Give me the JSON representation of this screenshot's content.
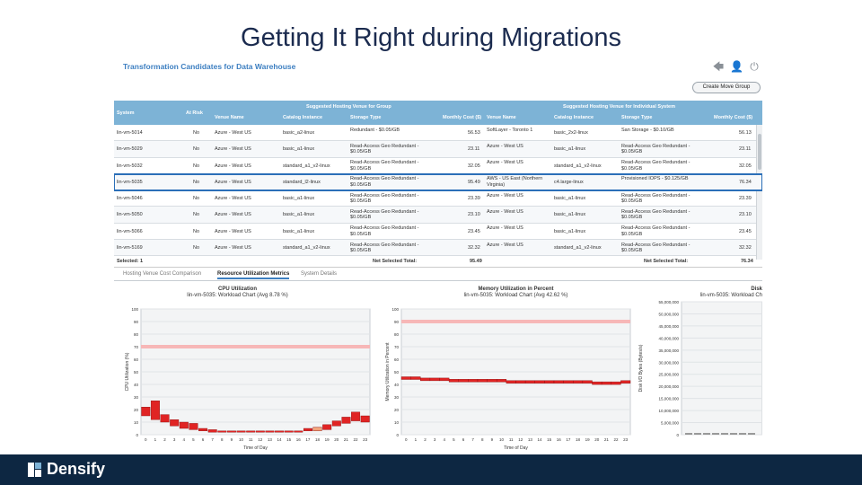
{
  "slide": {
    "title": "Getting It Right during Migrations",
    "logo_text": "Densify"
  },
  "app": {
    "title": "Transformation Candidates for Data Warehouse",
    "toolbar_icons": [
      "back-arrow-icon",
      "user-icon",
      "power-icon"
    ],
    "create_button": "Create Move Group"
  },
  "grid": {
    "group_headers": {
      "group": "Suggested Hosting Venue for Group",
      "individual": "Suggested Hosting Venue for Individual System"
    },
    "columns": [
      "System",
      "At Risk",
      "Venue Name",
      "Catalog Instance",
      "Storage Type",
      "Monthly Cost ($)",
      "Venue Name",
      "Catalog Instance",
      "Storage Type",
      "Monthly Cost ($)"
    ],
    "rows": [
      {
        "system": "lin-vm-5014",
        "risk": "No",
        "venue": "Azure - West US",
        "catalog": "basic_a2-linux",
        "storage": "Redundant - $0.05/GB",
        "cost": "56.53",
        "venue2": "SoftLayer - Toronto 1",
        "catalog2": "basic_2x2-linux",
        "storage2": "San Storage - $0.10/GB",
        "cost2": "56.13"
      },
      {
        "system": "lin-vm-5029",
        "risk": "No",
        "venue": "Azure - West US",
        "catalog": "basic_a1-linux",
        "storage": "Read-Access Geo Redundant - $0.05/GB",
        "cost": "23.11",
        "venue2": "Azure - West US",
        "catalog2": "basic_a1-linux",
        "storage2": "Read-Access Geo Redundant - $0.05/GB",
        "cost2": "23.11"
      },
      {
        "system": "lin-vm-5032",
        "risk": "No",
        "venue": "Azure - West US",
        "catalog": "standard_a1_v2-linux",
        "storage": "Read-Access Geo Redundant - $0.05/GB",
        "cost": "32.05",
        "venue2": "Azure - West US",
        "catalog2": "standard_a1_v2-linux",
        "storage2": "Read-Access Geo Redundant - $0.05/GB",
        "cost2": "32.05"
      },
      {
        "system": "lin-vm-5035",
        "risk": "No",
        "venue": "Azure - West US",
        "catalog": "standard_l2-linux",
        "storage": "Read-Access Geo Redundant - $0.05/GB",
        "cost": "95.49",
        "venue2": "AWS - US East (Northern Virginia)",
        "catalog2": "c4.large-linux",
        "storage2": "Provisioned IOPS - $0.125/GB",
        "cost2": "76.34",
        "selected": true
      },
      {
        "system": "lin-vm-5046",
        "risk": "No",
        "venue": "Azure - West US",
        "catalog": "basic_a1-linux",
        "storage": "Read-Access Geo Redundant - $0.05/GB",
        "cost": "23.39",
        "venue2": "Azure - West US",
        "catalog2": "basic_a1-linux",
        "storage2": "Read-Access Geo Redundant - $0.05/GB",
        "cost2": "23.39"
      },
      {
        "system": "lin-vm-5050",
        "risk": "No",
        "venue": "Azure - West US",
        "catalog": "basic_a1-linux",
        "storage": "Read-Access Geo Redundant - $0.05/GB",
        "cost": "23.10",
        "venue2": "Azure - West US",
        "catalog2": "basic_a1-linux",
        "storage2": "Read-Access Geo Redundant - $0.05/GB",
        "cost2": "23.10"
      },
      {
        "system": "lin-vm-5066",
        "risk": "No",
        "venue": "Azure - West US",
        "catalog": "basic_a1-linux",
        "storage": "Read-Access Geo Redundant - $0.05/GB",
        "cost": "23.45",
        "venue2": "Azure - West US",
        "catalog2": "basic_a1-linux",
        "storage2": "Read-Access Geo Redundant - $0.05/GB",
        "cost2": "23.45"
      },
      {
        "system": "lin-vm-5169",
        "risk": "No",
        "venue": "Azure - West US",
        "catalog": "standard_a1_v2-linux",
        "storage": "Read-Access Geo Redundant - $0.05/GB",
        "cost": "32.32",
        "venue2": "Azure - West US",
        "catalog2": "standard_a1_v2-linux",
        "storage2": "Read-Access Geo Redundant - $0.05/GB",
        "cost2": "32.32"
      }
    ],
    "footer": {
      "selected": "Selected: 1",
      "net_label_1": "Net Selected Total:",
      "net_value_1": "95.49",
      "net_label_2": "Net Selected Total:",
      "net_value_2": "76.34"
    }
  },
  "tabs": [
    {
      "label": "Hosting Venue Cost Comparison",
      "active": false
    },
    {
      "label": "Resource Utilization Metrics",
      "active": true
    },
    {
      "label": "System Details",
      "active": false
    }
  ],
  "chart_data": [
    {
      "type": "bar",
      "title": "CPU Utilization",
      "subtitle": "lin-vm-5035: Workload Chart (Avg 8.78 %)",
      "xlabel": "Time of Day",
      "ylabel": "CPU Utilization (%)",
      "ylim": [
        0,
        100
      ],
      "yticks": [
        0,
        10,
        20,
        30,
        40,
        50,
        60,
        70,
        80,
        90,
        100
      ],
      "categories": [
        "0",
        "1",
        "2",
        "3",
        "4",
        "5",
        "6",
        "7",
        "8",
        "9",
        "10",
        "11",
        "12",
        "13",
        "14",
        "15",
        "16",
        "17",
        "18",
        "19",
        "20",
        "21",
        "22",
        "23"
      ],
      "threshold": 70,
      "series": [
        {
          "name": "low",
          "values": [
            15,
            12,
            10,
            7,
            5,
            4,
            3,
            2,
            2,
            2,
            2,
            2,
            2,
            2,
            2,
            2,
            2,
            3,
            3,
            4,
            7,
            9,
            11,
            10
          ]
        },
        {
          "name": "high",
          "values": [
            22,
            27,
            16,
            12,
            10,
            9,
            5,
            4,
            3,
            3,
            3,
            3,
            3,
            3,
            3,
            3,
            3,
            5,
            6,
            8,
            11,
            14,
            18,
            15
          ]
        }
      ],
      "highlight_category": "18"
    },
    {
      "type": "line",
      "title": "Memory Utilization in Percent",
      "subtitle": "lin-vm-5035: Workload Chart (Avg 42.62 %)",
      "xlabel": "Time of Day",
      "ylabel": "Memory Utilization in Percent",
      "ylim": [
        0,
        100
      ],
      "yticks": [
        0,
        10,
        20,
        30,
        40,
        50,
        60,
        70,
        80,
        90,
        100
      ],
      "categories": [
        "0",
        "1",
        "2",
        "3",
        "4",
        "5",
        "6",
        "7",
        "8",
        "9",
        "10",
        "11",
        "12",
        "13",
        "14",
        "15",
        "16",
        "17",
        "18",
        "19",
        "20",
        "21",
        "22",
        "23"
      ],
      "threshold": 90,
      "series": [
        {
          "name": "memory",
          "values": [
            45,
            45,
            44,
            44,
            44,
            43,
            43,
            43,
            43,
            43,
            43,
            42,
            42,
            42,
            42,
            42,
            42,
            42,
            42,
            42,
            41,
            41,
            41,
            42
          ]
        }
      ]
    },
    {
      "type": "bar",
      "title": "Disk",
      "subtitle": "lin-vm-5035: Workload Ch",
      "ylabel": "Disk I/O Bytes (Bytes/s)",
      "yticks": [
        "0",
        "5,000,000",
        "10,000,000",
        "15,000,000",
        "20,000,000",
        "25,000,000",
        "30,000,000",
        "35,000,000",
        "40,000,000",
        "45,000,000",
        "50,000,000",
        "55,000,000"
      ],
      "ylim": [
        0,
        55000000
      ]
    }
  ],
  "colors": {
    "header_bg": "#7db3d6",
    "footer_bg": "#0d2742",
    "bar_red": "#e02424",
    "threshold_pink": "#f7b7b7",
    "accent_blue": "#3d7fc1"
  }
}
